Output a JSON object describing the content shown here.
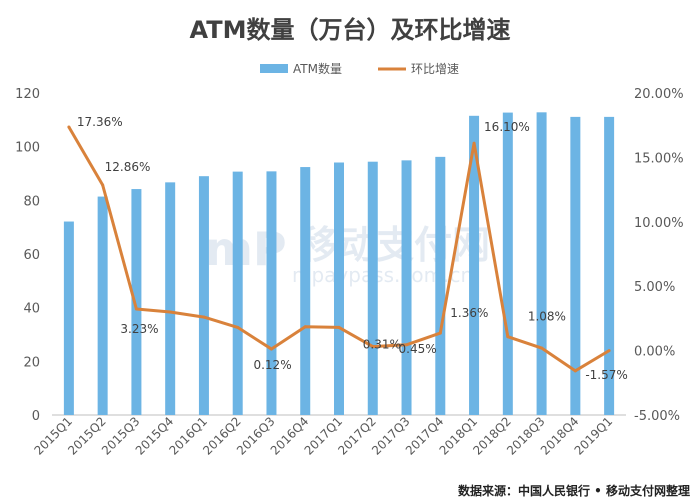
{
  "title": "ATM数量（万台）及环比增速",
  "source": "数据来源：中国人民银行 • 移动支付网整理",
  "watermark": {
    "cn": "移动支付网",
    "en": "mpaypass.com.cn",
    "logo": "mP"
  },
  "colors": {
    "bar": "#6cb4e4",
    "line": "#d9823b",
    "axis_text": "#595959",
    "grid": "#d9d9d9"
  },
  "chart_data": {
    "type": "bar+line",
    "categories": [
      "2015Q1",
      "2015Q2",
      "2015Q3",
      "2015Q4",
      "2016Q1",
      "2016Q2",
      "2016Q3",
      "2016Q4",
      "2017Q1",
      "2017Q2",
      "2017Q3",
      "2017Q4",
      "2018Q1",
      "2018Q2",
      "2018Q3",
      "2018Q4",
      "2019Q1"
    ],
    "series": [
      {
        "name": "ATM数量",
        "type": "bar",
        "axis": "left",
        "values": [
          72.1,
          81.4,
          84.2,
          86.7,
          89.0,
          90.7,
          90.8,
          92.4,
          94.1,
          94.4,
          94.9,
          96.2,
          111.5,
          112.7,
          112.8,
          111.1,
          111.1
        ]
      },
      {
        "name": "环比增速",
        "type": "line",
        "axis": "right",
        "unit": "%",
        "values": [
          17.36,
          12.86,
          3.23,
          3.0,
          2.6,
          1.8,
          0.12,
          1.85,
          1.8,
          0.31,
          0.45,
          1.36,
          16.1,
          1.08,
          0.2,
          -1.57,
          0.0
        ]
      }
    ],
    "data_labels": [
      {
        "index": 0,
        "text": "17.36%"
      },
      {
        "index": 1,
        "text": "12.86%"
      },
      {
        "index": 2,
        "text": "3.23%"
      },
      {
        "index": 6,
        "text": "0.12%"
      },
      {
        "index": 9,
        "text": "0.31%"
      },
      {
        "index": 10,
        "text": "0.45%"
      },
      {
        "index": 11,
        "text": "1.36%"
      },
      {
        "index": 12,
        "text": "16.10%"
      },
      {
        "index": 13,
        "text": "1.08%"
      },
      {
        "index": 15,
        "text": "-1.57%"
      }
    ],
    "y_left": {
      "min": 0,
      "max": 120,
      "ticks": [
        0,
        20,
        40,
        60,
        80,
        100,
        120
      ]
    },
    "y_right": {
      "min": -5,
      "max": 20,
      "ticks": [
        "-5.00%",
        "0.00%",
        "5.00%",
        "10.00%",
        "15.00%",
        "20.00%"
      ]
    },
    "legend_position": "top-center",
    "grid": false
  }
}
